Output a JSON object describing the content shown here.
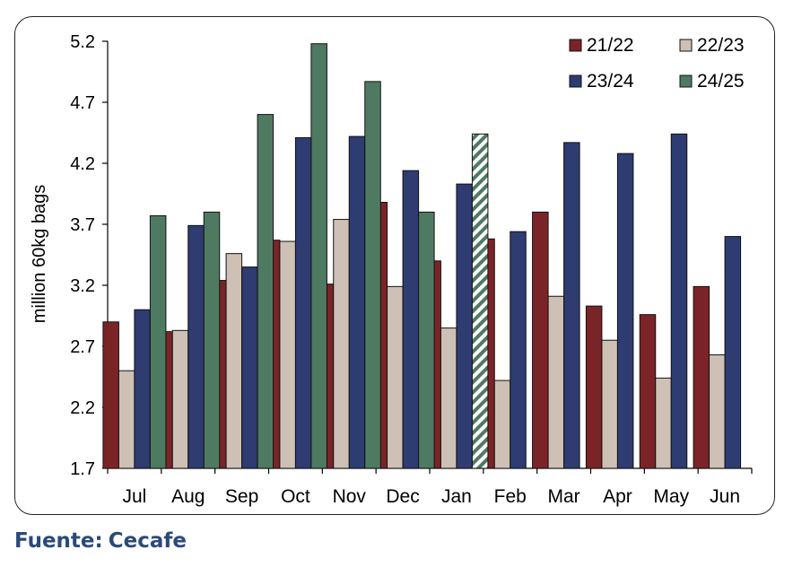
{
  "chart_data": {
    "type": "bar",
    "ylabel": "million 60kg bags",
    "ylim": [
      1.7,
      5.2
    ],
    "yticks": [
      1.7,
      2.2,
      2.7,
      3.2,
      3.7,
      4.2,
      4.7,
      5.2
    ],
    "categories": [
      "Jul",
      "Aug",
      "Sep",
      "Oct",
      "Nov",
      "Dec",
      "Jan",
      "Feb",
      "Mar",
      "Apr",
      "May",
      "Jun"
    ],
    "legend_position": "top-right",
    "series": [
      {
        "name": "21/22",
        "color": "#7b2427",
        "values": [
          2.9,
          2.82,
          3.24,
          3.57,
          3.21,
          3.88,
          3.4,
          3.58,
          3.8,
          3.03,
          2.96,
          3.19
        ]
      },
      {
        "name": "22/23",
        "color": "#cfc0b5",
        "values": [
          2.5,
          2.83,
          3.46,
          3.56,
          3.74,
          3.19,
          2.85,
          2.42,
          3.11,
          2.75,
          2.44,
          2.63
        ]
      },
      {
        "name": "23/24",
        "color": "#2e3c72",
        "values": [
          3.0,
          3.69,
          3.35,
          4.41,
          4.42,
          4.14,
          4.03,
          3.64,
          4.37,
          4.28,
          4.44,
          3.6
        ]
      },
      {
        "name": "24/25",
        "color": "#4f7a62",
        "values": [
          3.77,
          3.8,
          4.6,
          5.18,
          4.87,
          3.8,
          4.44,
          null,
          null,
          null,
          null,
          null
        ],
        "hatched_index": 6
      }
    ]
  },
  "source": {
    "prefix": "Fuente:",
    "name": "Cecafe"
  }
}
